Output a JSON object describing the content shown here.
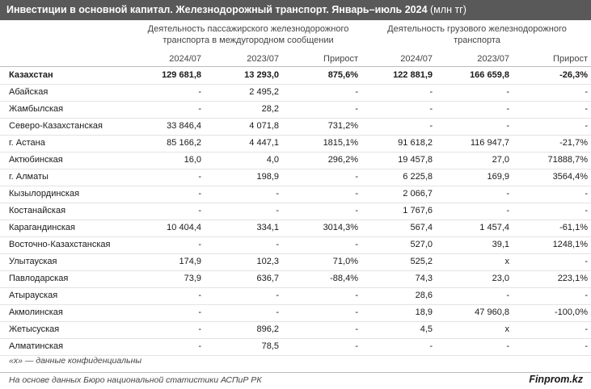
{
  "title": {
    "main": "Инвестиции в основной капитал. Железнодорожный транспорт. Январь–июль 2024",
    "unit": "(млн тг)"
  },
  "groups": {
    "passenger": "Деятельность пассажирского железнодорожного транспорта в междугородном сообщении",
    "freight": "Деятельность грузового железнодорожного транспорта"
  },
  "columns": [
    "2024/07",
    "2023/07",
    "Прирост",
    "2024/07",
    "2023/07",
    "Прирост"
  ],
  "rows": [
    {
      "region": "Казахстан",
      "v": [
        "129 681,8",
        "13 293,0",
        "875,6%",
        "122 881,9",
        "166 659,8",
        "-26,3%"
      ]
    },
    {
      "region": "Абайская",
      "v": [
        "-",
        "2 495,2",
        "-",
        "-",
        "-",
        "-"
      ]
    },
    {
      "region": "Жамбылская",
      "v": [
        "-",
        "28,2",
        "-",
        "-",
        "-",
        "-"
      ]
    },
    {
      "region": "Северо-Казахстанская",
      "v": [
        "33 846,4",
        "4 071,8",
        "731,2%",
        "-",
        "-",
        "-"
      ]
    },
    {
      "region": "г. Астана",
      "v": [
        "85 166,2",
        "4 447,1",
        "1815,1%",
        "91 618,2",
        "116 947,7",
        "-21,7%"
      ]
    },
    {
      "region": "Актюбинская",
      "v": [
        "16,0",
        "4,0",
        "296,2%",
        "19 457,8",
        "27,0",
        "71888,7%"
      ]
    },
    {
      "region": "г. Алматы",
      "v": [
        "-",
        "198,9",
        "-",
        "6 225,8",
        "169,9",
        "3564,4%"
      ]
    },
    {
      "region": "Кызылординская",
      "v": [
        "-",
        "-",
        "-",
        "2 066,7",
        "-",
        "-"
      ]
    },
    {
      "region": "Костанайская",
      "v": [
        "-",
        "-",
        "-",
        "1 767,6",
        "-",
        "-"
      ]
    },
    {
      "region": "Карагандинская",
      "v": [
        "10 404,4",
        "334,1",
        "3014,3%",
        "567,4",
        "1 457,4",
        "-61,1%"
      ]
    },
    {
      "region": "Восточно-Казахстанская",
      "v": [
        "-",
        "-",
        "-",
        "527,0",
        "39,1",
        "1248,1%"
      ]
    },
    {
      "region": "Улытауская",
      "v": [
        "174,9",
        "102,3",
        "71,0%",
        "525,2",
        "x",
        "-"
      ]
    },
    {
      "region": "Павлодарская",
      "v": [
        "73,9",
        "636,7",
        "-88,4%",
        "74,3",
        "23,0",
        "223,1%"
      ]
    },
    {
      "region": "Атырауская",
      "v": [
        "-",
        "-",
        "-",
        "28,6",
        "-",
        "-"
      ]
    },
    {
      "region": "Акмолинская",
      "v": [
        "-",
        "-",
        "-",
        "18,9",
        "47 960,8",
        "-100,0%"
      ]
    },
    {
      "region": "Жетысуская",
      "v": [
        "-",
        "896,2",
        "-",
        "4,5",
        "x",
        "-"
      ]
    },
    {
      "region": "Алматинская",
      "v": [
        "-",
        "78,5",
        "-",
        "-",
        "-",
        "-"
      ]
    }
  ],
  "footnote": "«x» — данные конфиденциальны",
  "source": "На основе данных Бюро национальной статистики АСПиР РК",
  "brand": "Finprom.kz"
}
